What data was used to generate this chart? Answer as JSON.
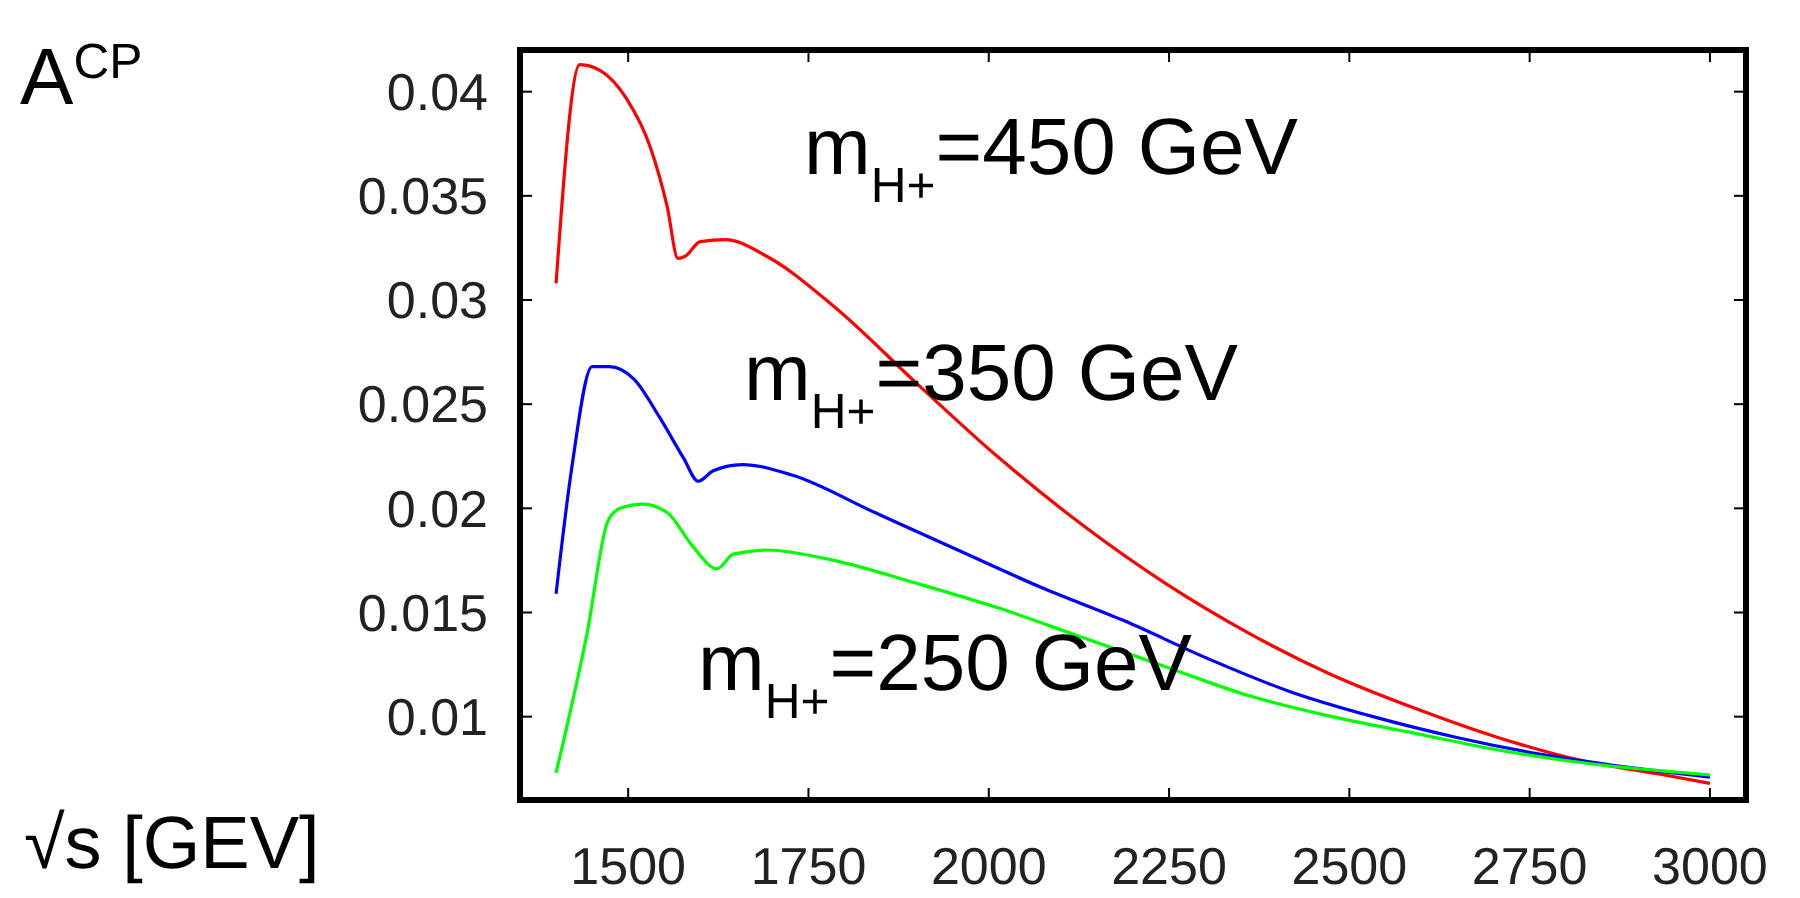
{
  "chart_data": {
    "type": "line",
    "xlabel": "√s [GEV]",
    "ylabel": "A$^{CP}$",
    "xlim": [
      1350,
      3050
    ],
    "xticks": [
      1500,
      1750,
      2000,
      2250,
      2500,
      2750,
      3000
    ],
    "ylim": [
      0.006,
      0.042
    ],
    "yticks": [
      0.01,
      0.015,
      0.02,
      0.025,
      0.03,
      0.035,
      0.04
    ],
    "grid": false,
    "marker": "none",
    "line_style": "solid",
    "series": [
      {
        "name": "m$_{H+}$=450 GeV",
        "color": "#ff0000",
        "x": [
          1400,
          1433,
          1462,
          1497,
          1531,
          1554,
          1569,
          1579,
          1600,
          1635,
          1692,
          1785,
          1900,
          2015,
          2130,
          2245,
          2361,
          2476,
          2591,
          2706,
          2821,
          2937,
          3000
        ],
        "values": [
          0.0308,
          0.0413,
          0.041,
          0.0397,
          0.0373,
          0.0345,
          0.032,
          0.0321,
          0.0328,
          0.0329,
          0.0321,
          0.0297,
          0.026,
          0.0224,
          0.0192,
          0.0164,
          0.014,
          0.012,
          0.0104,
          0.009,
          0.0079,
          0.0072,
          0.0068
        ]
      },
      {
        "name": "m$_{H+}$=350 GeV",
        "color": "#0000ff",
        "x": [
          1400,
          1422,
          1450,
          1474,
          1508,
          1543,
          1577,
          1597,
          1618,
          1658,
          1727,
          1842,
          1957,
          2073,
          2188,
          2303,
          2418,
          2533,
          2649,
          2764,
          2879,
          3000
        ],
        "values": [
          0.0159,
          0.022,
          0.0268,
          0.0268,
          0.0262,
          0.0244,
          0.0224,
          0.0213,
          0.0218,
          0.0221,
          0.0216,
          0.0198,
          0.018,
          0.0162,
          0.0146,
          0.0128,
          0.0112,
          0.01,
          0.009,
          0.0082,
          0.0076,
          0.0071
        ]
      },
      {
        "name": "m$_{H+}$=250 GeV",
        "color": "#00ff00",
        "x": [
          1400,
          1443,
          1472,
          1489,
          1520,
          1554,
          1589,
          1623,
          1646,
          1692,
          1785,
          1900,
          2015,
          2130,
          2245,
          2361,
          2476,
          2591,
          2706,
          2821,
          3000
        ],
        "values": [
          0.0073,
          0.014,
          0.0194,
          0.02,
          0.0202,
          0.0198,
          0.0182,
          0.0171,
          0.0178,
          0.018,
          0.0175,
          0.0164,
          0.0152,
          0.0138,
          0.0124,
          0.011,
          0.01,
          0.0092,
          0.0084,
          0.0078,
          0.0072
        ]
      }
    ]
  }
}
